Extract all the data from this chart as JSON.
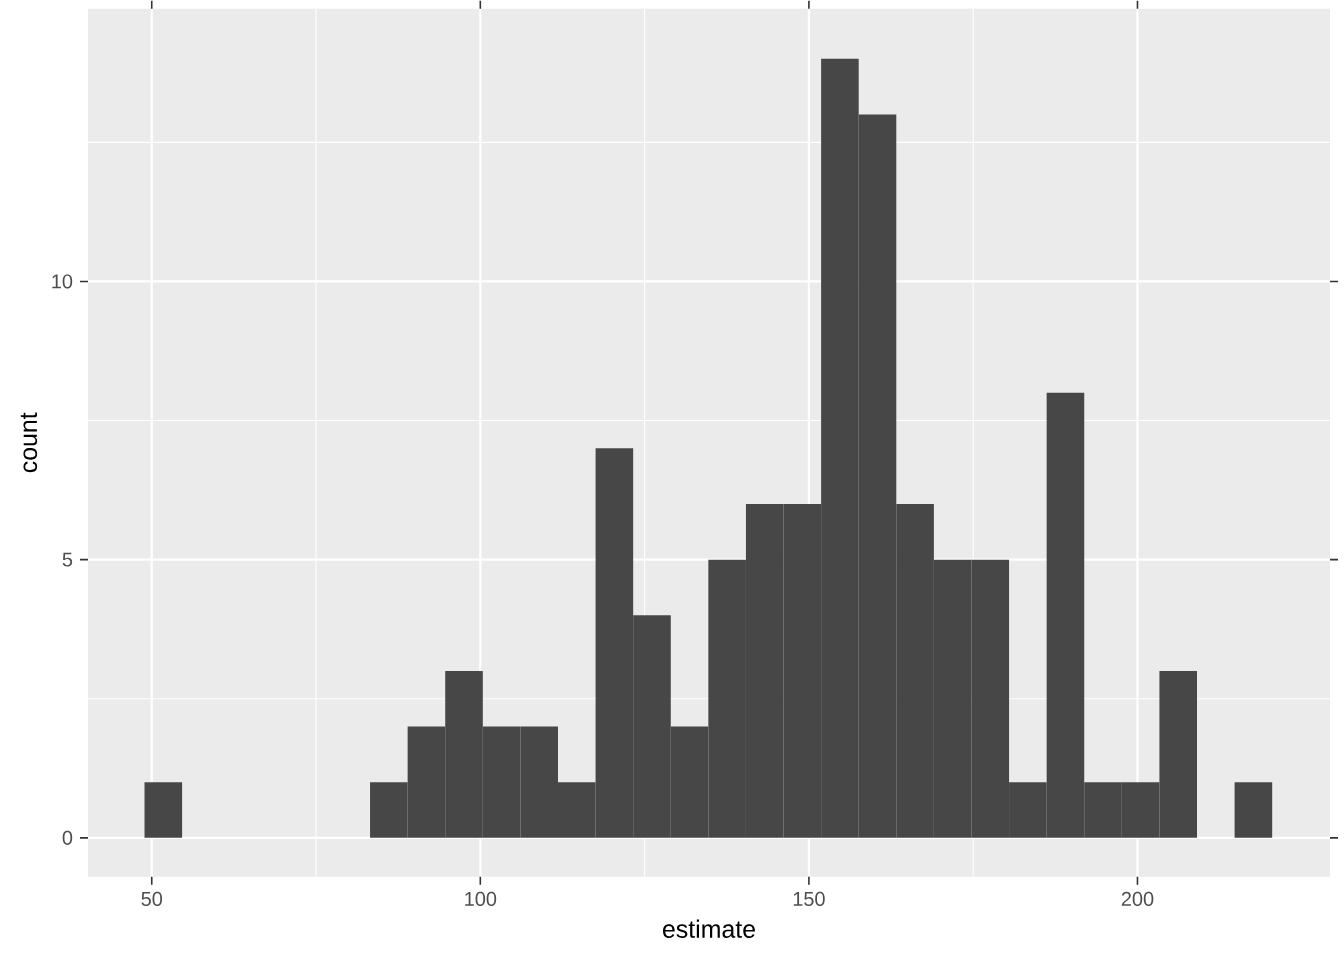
{
  "chart_data": {
    "type": "histogram",
    "xlabel": "estimate",
    "ylabel": "count",
    "color": "#474747",
    "bins": [
      48.9,
      54.62,
      60.34,
      66.06,
      71.78,
      77.5,
      83.22,
      88.94,
      94.66,
      100.38,
      106.1,
      111.82,
      117.54,
      123.26,
      128.98,
      134.7,
      140.42,
      146.14,
      151.86,
      157.58,
      163.3,
      169.02,
      174.74,
      180.46,
      186.18,
      191.9,
      197.62,
      203.34,
      209.06,
      214.78,
      220.5
    ],
    "values": [
      1,
      0,
      0,
      0,
      0,
      0,
      1,
      2,
      3,
      2,
      2,
      1,
      7,
      4,
      2,
      5,
      6,
      6,
      14,
      13,
      6,
      5,
      5,
      1,
      8,
      1,
      1,
      3,
      0,
      1
    ],
    "xlim": [
      40.3,
      229.3
    ],
    "ylim": [
      -0.7,
      14.9
    ],
    "xticks": [
      50,
      100,
      150,
      200
    ],
    "yticks": [
      0,
      5,
      10
    ],
    "grid": true
  }
}
